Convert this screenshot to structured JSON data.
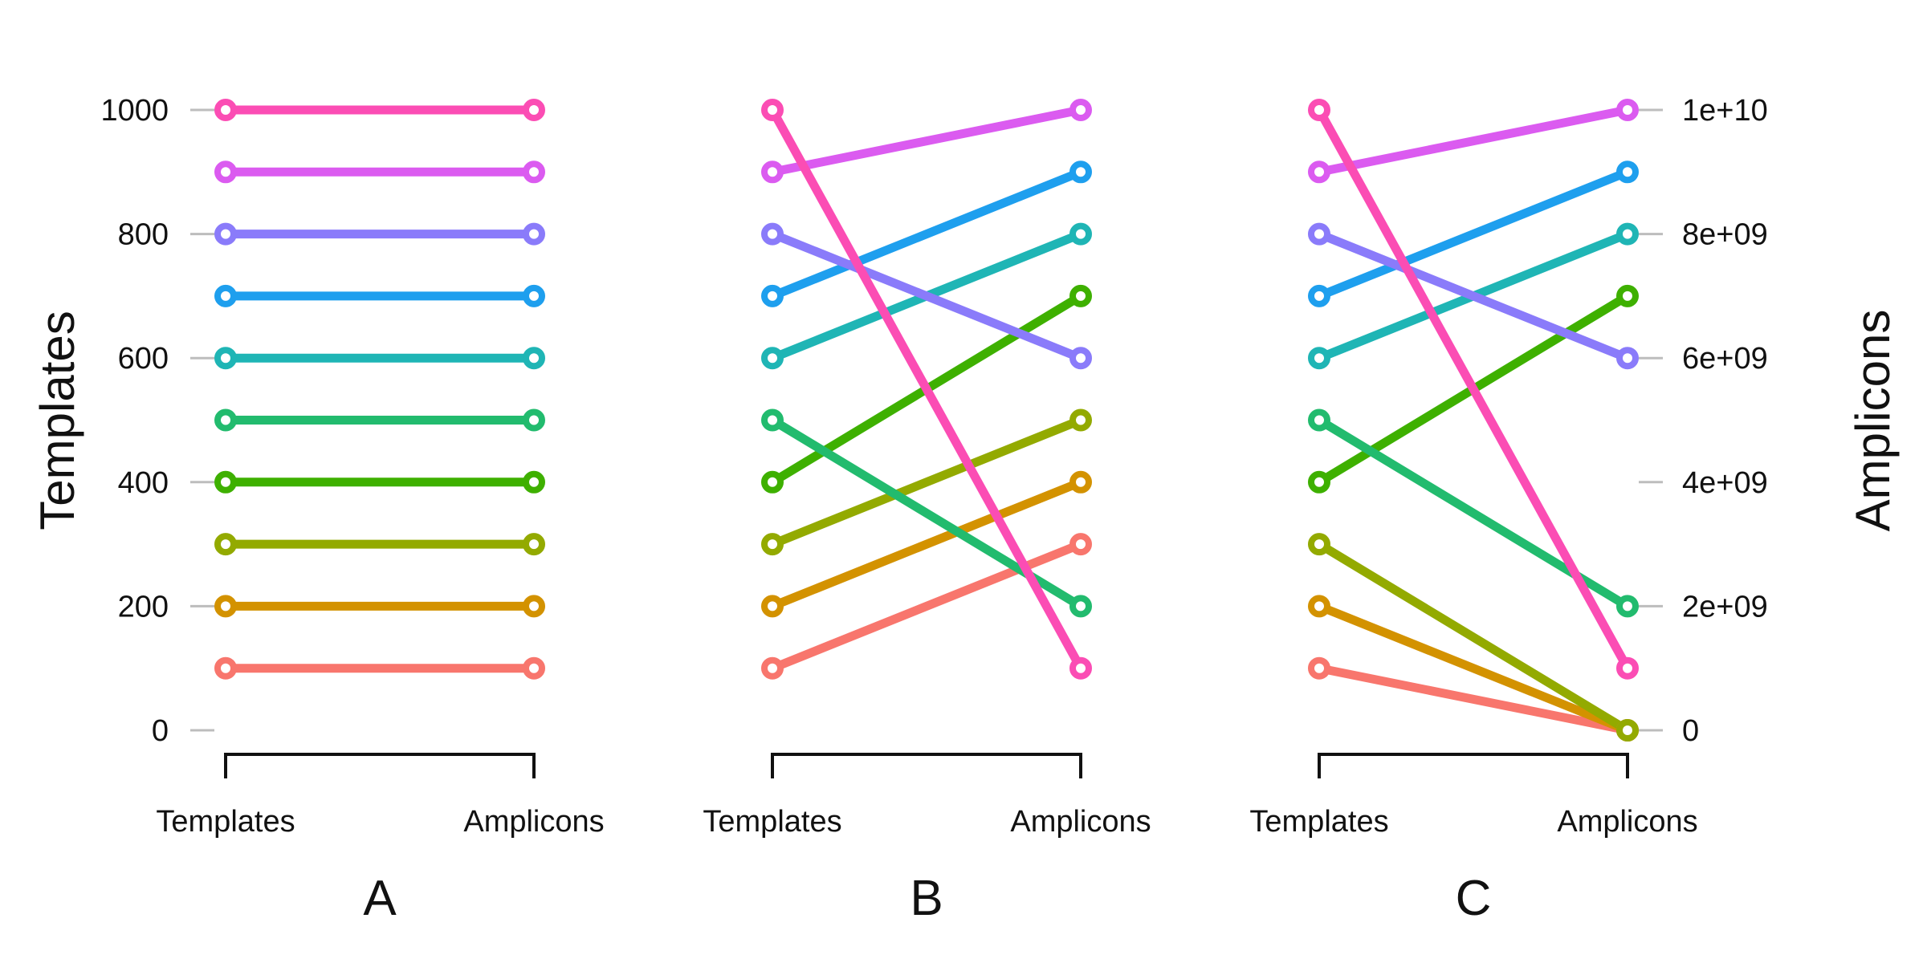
{
  "chart_data": {
    "type": "line",
    "left_axis": {
      "title": "Templates",
      "range": [
        0,
        1000
      ],
      "ticks": [
        0,
        200,
        400,
        600,
        800,
        1000
      ],
      "tick_labels": [
        "0",
        "200",
        "400",
        "600",
        "800",
        "1000"
      ]
    },
    "right_axis": {
      "title": "Amplicons",
      "range": [
        0,
        10000000000
      ],
      "ticks": [
        0,
        2000000000,
        4000000000,
        6000000000,
        8000000000,
        10000000000
      ],
      "tick_labels": [
        "0",
        "2e+09",
        "4e+09",
        "6e+09",
        "8e+09",
        "1e+10"
      ]
    },
    "panels": [
      {
        "label": "A",
        "categories": [
          "Templates",
          "Amplicons"
        ],
        "series": [
          {
            "color": "#F8766D",
            "values": [
              100,
              100
            ]
          },
          {
            "color": "#D39200",
            "values": [
              200,
              200
            ]
          },
          {
            "color": "#93AA00",
            "values": [
              300,
              300
            ]
          },
          {
            "color": "#3EB000",
            "values": [
              400,
              400
            ]
          },
          {
            "color": "#22BB6E",
            "values": [
              500,
              500
            ]
          },
          {
            "color": "#1FB5B5",
            "values": [
              600,
              600
            ]
          },
          {
            "color": "#1E9FEE",
            "values": [
              700,
              700
            ]
          },
          {
            "color": "#8A7BFA",
            "values": [
              800,
              800
            ]
          },
          {
            "color": "#DB5BF0",
            "values": [
              900,
              900
            ]
          },
          {
            "color": "#FB4DB4",
            "values": [
              1000,
              1000
            ]
          }
        ]
      },
      {
        "label": "B",
        "categories": [
          "Templates",
          "Amplicons"
        ],
        "series": [
          {
            "color": "#F8766D",
            "values": [
              100,
              300
            ]
          },
          {
            "color": "#D39200",
            "values": [
              200,
              400
            ]
          },
          {
            "color": "#93AA00",
            "values": [
              300,
              500
            ]
          },
          {
            "color": "#3EB000",
            "values": [
              400,
              700
            ]
          },
          {
            "color": "#22BB6E",
            "values": [
              500,
              200
            ]
          },
          {
            "color": "#1FB5B5",
            "values": [
              600,
              800
            ]
          },
          {
            "color": "#1E9FEE",
            "values": [
              700,
              900
            ]
          },
          {
            "color": "#8A7BFA",
            "values": [
              800,
              600
            ]
          },
          {
            "color": "#DB5BF0",
            "values": [
              900,
              1000
            ]
          },
          {
            "color": "#FB4DB4",
            "values": [
              1000,
              100
            ]
          }
        ]
      },
      {
        "label": "C",
        "categories": [
          "Templates",
          "Amplicons"
        ],
        "series": [
          {
            "color": "#F8766D",
            "values": [
              100,
              0
            ]
          },
          {
            "color": "#D39200",
            "values": [
              200,
              0
            ]
          },
          {
            "color": "#93AA00",
            "values": [
              300,
              0
            ]
          },
          {
            "color": "#3EB000",
            "values": [
              400,
              7000000000
            ]
          },
          {
            "color": "#22BB6E",
            "values": [
              500,
              2000000000
            ]
          },
          {
            "color": "#1FB5B5",
            "values": [
              600,
              8000000000
            ]
          },
          {
            "color": "#1E9FEE",
            "values": [
              700,
              9000000000
            ]
          },
          {
            "color": "#8A7BFA",
            "values": [
              800,
              6000000000
            ]
          },
          {
            "color": "#DB5BF0",
            "values": [
              900,
              10000000000
            ]
          },
          {
            "color": "#FB4DB4",
            "values": [
              1000,
              1000000000
            ]
          }
        ]
      }
    ]
  }
}
